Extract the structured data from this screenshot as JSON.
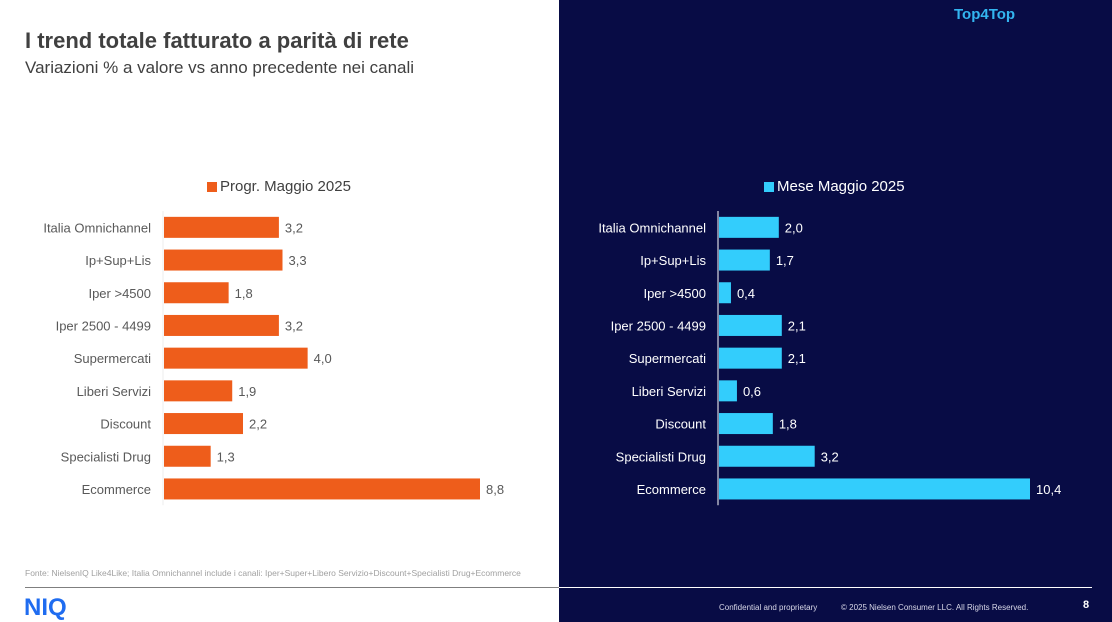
{
  "header": {
    "title": "I trend totale fatturato a parità di rete",
    "subtitle": "Variazioni % a valore vs anno precedente nei canali",
    "brand_tag": "Top4Top"
  },
  "colors": {
    "progr_series": "#ee5d1b",
    "mese_series": "#33cdfc",
    "right_background": "#080c45",
    "logo": "#1f6cf0"
  },
  "chart_data": [
    {
      "type": "bar",
      "orientation": "horizontal",
      "legend": "Progr. Maggio 2025",
      "legend_position": "top",
      "categories": [
        "Italia Omnichannel",
        "Ip+Sup+Lis",
        "Iper >4500",
        "Iper 2500 - 4499",
        "Supermercati",
        "Liberi Servizi",
        "Discount",
        "Specialisti Drug",
        "Ecommerce"
      ],
      "values": [
        3.2,
        3.3,
        1.8,
        3.2,
        4.0,
        1.9,
        2.2,
        1.3,
        8.8
      ],
      "value_labels": [
        "3,2",
        "3,3",
        "1,8",
        "3,2",
        "4,0",
        "1,9",
        "2,2",
        "1,3",
        "8,8"
      ],
      "xlim": [
        0,
        8.8
      ],
      "grid": false,
      "title": "",
      "xlabel": "",
      "ylabel": ""
    },
    {
      "type": "bar",
      "orientation": "horizontal",
      "legend": "Mese Maggio 2025",
      "legend_position": "top",
      "categories": [
        "Italia Omnichannel",
        "Ip+Sup+Lis",
        "Iper >4500",
        "Iper 2500 - 4499",
        "Supermercati",
        "Liberi Servizi",
        "Discount",
        "Specialisti Drug",
        "Ecommerce"
      ],
      "values": [
        2.0,
        1.7,
        0.4,
        2.1,
        2.1,
        0.6,
        1.8,
        3.2,
        10.4
      ],
      "value_labels": [
        "2,0",
        "1,7",
        "0,4",
        "2,1",
        "2,1",
        "0,6",
        "1,8",
        "3,2",
        "10,4"
      ],
      "xlim": [
        0,
        10.4
      ],
      "grid": false,
      "title": "",
      "xlabel": "",
      "ylabel": ""
    }
  ],
  "footer": {
    "source_note": "Fonte: NielsenIQ Like4Like; Italia Omnichannel include i canali: Iper+Super+Libero Servizio+Discount+Specialisti Drug+Ecommerce",
    "logo_text": "NIQ",
    "confidential": "Confidential and proprietary",
    "copyright": "© 2025 Nielsen Consumer LLC. All Rights Reserved.",
    "page_number": "8"
  }
}
